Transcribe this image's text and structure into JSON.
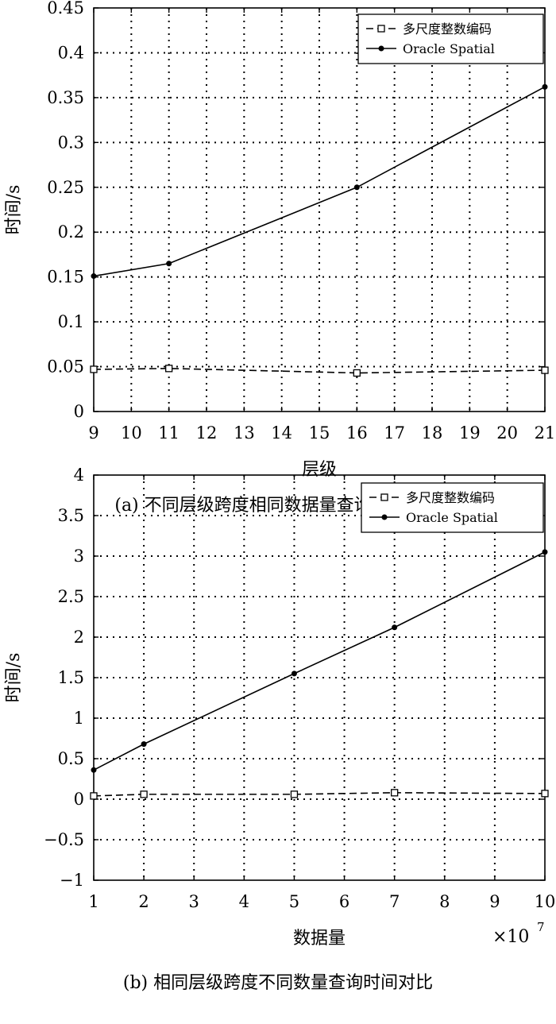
{
  "chart_data": [
    {
      "type": "line",
      "caption": "(a) 不同层级跨度相同数据量查询时间对比",
      "xlabel": "层级",
      "ylabel": "时间/s",
      "xlim": [
        9,
        21
      ],
      "ylim": [
        0,
        0.45
      ],
      "xticks": [
        9,
        10,
        11,
        12,
        13,
        14,
        15,
        16,
        17,
        18,
        19,
        20,
        21
      ],
      "yticks": [
        0,
        0.05,
        0.1,
        0.15,
        0.2,
        0.25,
        0.3,
        0.35,
        0.4,
        0.45
      ],
      "xticklabels": [
        "9",
        "10",
        "11",
        "12",
        "13",
        "14",
        "15",
        "16",
        "17",
        "18",
        "19",
        "20",
        "21"
      ],
      "yticklabels": [
        "0",
        "0.05",
        "0.1",
        "0.15",
        "0.2",
        "0.25",
        "0.3",
        "0.35",
        "0.4",
        "0.45"
      ],
      "grid": true,
      "legend_position": "top-right",
      "series": [
        {
          "name": "多尺度整数编码",
          "style": "dashed",
          "marker": "square",
          "x": [
            9,
            11,
            16,
            21
          ],
          "y": [
            0.047,
            0.048,
            0.043,
            0.046
          ]
        },
        {
          "name": "Oracle Spatial",
          "style": "solid",
          "marker": "circle",
          "x": [
            9,
            11,
            16,
            21
          ],
          "y": [
            0.151,
            0.165,
            0.25,
            0.362
          ]
        }
      ]
    },
    {
      "type": "line",
      "caption": "(b) 相同层级跨度不同数量查询时间对比",
      "xlabel": "数据量",
      "ylabel": "时间/s",
      "x_multiplier": "×10",
      "x_multiplier_exp": "7",
      "xlim": [
        1,
        10
      ],
      "ylim": [
        -1,
        4
      ],
      "xticks": [
        1,
        2,
        3,
        4,
        5,
        6,
        7,
        8,
        9,
        10
      ],
      "yticks": [
        -1,
        -0.5,
        0,
        0.5,
        1,
        1.5,
        2,
        2.5,
        3,
        3.5,
        4
      ],
      "xticklabels": [
        "1",
        "2",
        "3",
        "4",
        "5",
        "6",
        "7",
        "8",
        "9",
        "10"
      ],
      "yticklabels": [
        "−1",
        "−0.5",
        "0",
        "0.5",
        "1",
        "1.5",
        "2",
        "2.5",
        "3",
        "3.5",
        "4"
      ],
      "grid": true,
      "legend_position": "top-right",
      "series": [
        {
          "name": "多尺度整数编码",
          "style": "dashed",
          "marker": "square",
          "x": [
            1,
            2,
            5,
            7,
            10
          ],
          "y": [
            0.04,
            0.06,
            0.06,
            0.08,
            0.07
          ]
        },
        {
          "name": "Oracle Spatial",
          "style": "solid",
          "marker": "circle",
          "x": [
            1,
            2,
            5,
            7,
            10
          ],
          "y": [
            0.36,
            0.68,
            1.55,
            2.12,
            3.05
          ]
        }
      ]
    }
  ]
}
